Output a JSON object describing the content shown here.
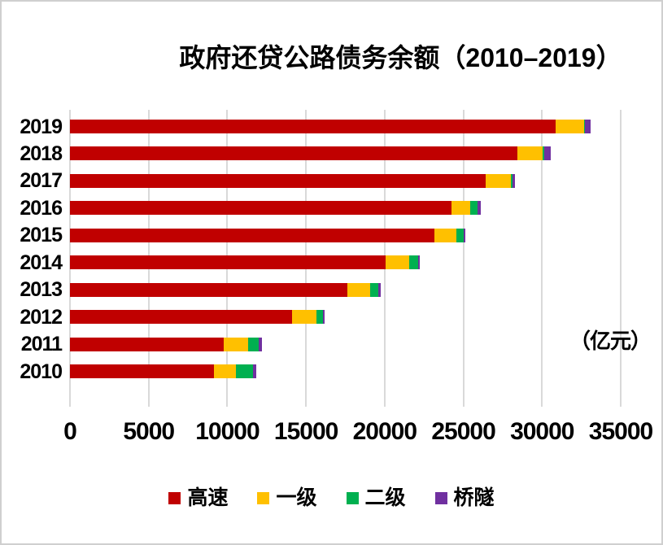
{
  "title": "政府还贷公路债务余额（2010–2019）",
  "unit_label": "（亿元）",
  "colors": {
    "expressway": "#C00000",
    "first_class": "#FFC000",
    "second_class": "#00B050",
    "bridge_tunnel": "#7030A0",
    "gridline": "#D9D9D9",
    "frame_border": "#CFCFCF",
    "text": "#000000",
    "background": "#FFFFFF"
  },
  "chart_data": {
    "type": "bar",
    "orientation": "horizontal",
    "stacked": true,
    "title": "政府还贷公路债务余额（2010–2019）",
    "xlabel": "（亿元）",
    "ylabel": "",
    "grid": "vertical",
    "legend_position": "bottom",
    "xlim": [
      0,
      35000
    ],
    "x_ticks": [
      0,
      5000,
      10000,
      15000,
      20000,
      25000,
      30000,
      35000
    ],
    "categories": [
      "2019",
      "2018",
      "2017",
      "2016",
      "2015",
      "2014",
      "2013",
      "2012",
      "2011",
      "2010"
    ],
    "series": [
      {
        "name": "高速",
        "color": "#C00000",
        "values": [
          30850,
          28430,
          26420,
          24270,
          23180,
          20080,
          17610,
          14130,
          9780,
          9130
        ]
      },
      {
        "name": "一级",
        "color": "#FFC000",
        "values": [
          1810,
          1590,
          1590,
          1150,
          1380,
          1460,
          1480,
          1510,
          1560,
          1430
        ]
      },
      {
        "name": "二级",
        "color": "#00B050",
        "values": [
          75,
          140,
          90,
          480,
          450,
          570,
          490,
          430,
          670,
          1070
        ]
      },
      {
        "name": "桥隧",
        "color": "#7030A0",
        "values": [
          365,
          380,
          200,
          210,
          140,
          120,
          150,
          130,
          190,
          220
        ]
      }
    ]
  },
  "legend": {
    "items": [
      {
        "label": "高速",
        "color": "#C00000"
      },
      {
        "label": "一级",
        "color": "#FFC000"
      },
      {
        "label": "二级",
        "color": "#00B050"
      },
      {
        "label": "桥隧",
        "color": "#7030A0"
      }
    ]
  }
}
